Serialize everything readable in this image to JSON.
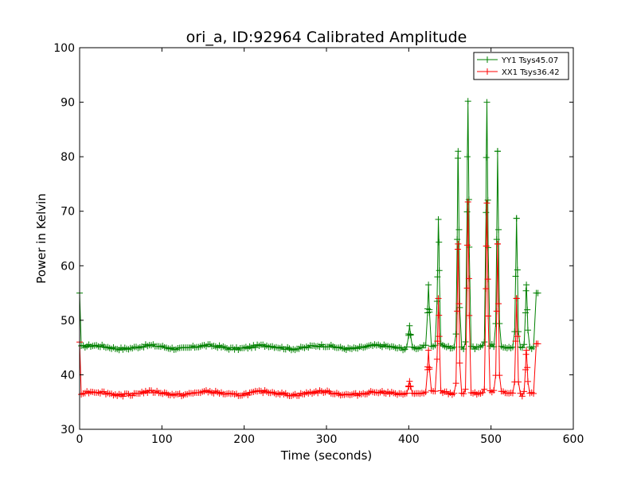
{
  "chart_data": {
    "type": "line",
    "title": "ori_a, ID:92964 Calibrated Amplitude",
    "xlabel": "Time (seconds)",
    "ylabel": "Power in Kelvin",
    "xlim": [
      0,
      600
    ],
    "ylim": [
      30,
      100
    ],
    "xticks": [
      0,
      100,
      200,
      300,
      400,
      500,
      600
    ],
    "yticks": [
      30,
      40,
      50,
      60,
      70,
      80,
      90,
      100
    ],
    "xtick_labels": [
      "0",
      "100",
      "200",
      "300",
      "400",
      "500",
      "600"
    ],
    "ytick_labels": [
      "30",
      "40",
      "50",
      "60",
      "70",
      "80",
      "90",
      "100"
    ],
    "grid": false,
    "legend_position": "top-right",
    "marker": "+",
    "series": [
      {
        "name": "YY1 Tsys45.07",
        "color": "#008000",
        "baseline": 45.07,
        "baseline_start": 2,
        "baseline_end": 552,
        "start_point": [
          0,
          55
        ],
        "end_points": [
          [
            555,
            55
          ],
          [
            557,
            55
          ]
        ],
        "peaks": [
          {
            "x": 401,
            "peak": 49
          },
          {
            "x": 424,
            "peak": 56.5
          },
          {
            "x": 436,
            "peak": 68.5
          },
          {
            "x": 460,
            "peak": 81
          },
          {
            "x": 472,
            "peak": 90.2
          },
          {
            "x": 495,
            "peak": 90
          },
          {
            "x": 508,
            "peak": 81
          },
          {
            "x": 531,
            "peak": 68.7
          },
          {
            "x": 543,
            "peak": 56.5
          }
        ]
      },
      {
        "name": "XX1 Tsys36.42",
        "color": "#ff0000",
        "baseline": 36.6,
        "baseline_start": 2,
        "baseline_end": 552,
        "start_point": [
          0,
          46
        ],
        "end_points": [
          [
            555,
            45.7
          ],
          [
            557,
            45.7
          ]
        ],
        "peaks": [
          {
            "x": 401,
            "peak": 38.8
          },
          {
            "x": 424,
            "peak": 44.5
          },
          {
            "x": 436,
            "peak": 54
          },
          {
            "x": 460,
            "peak": 64
          },
          {
            "x": 472,
            "peak": 71.7
          },
          {
            "x": 495,
            "peak": 71.5
          },
          {
            "x": 508,
            "peak": 64
          },
          {
            "x": 531,
            "peak": 54
          },
          {
            "x": 543,
            "peak": 44.5
          }
        ]
      }
    ]
  }
}
